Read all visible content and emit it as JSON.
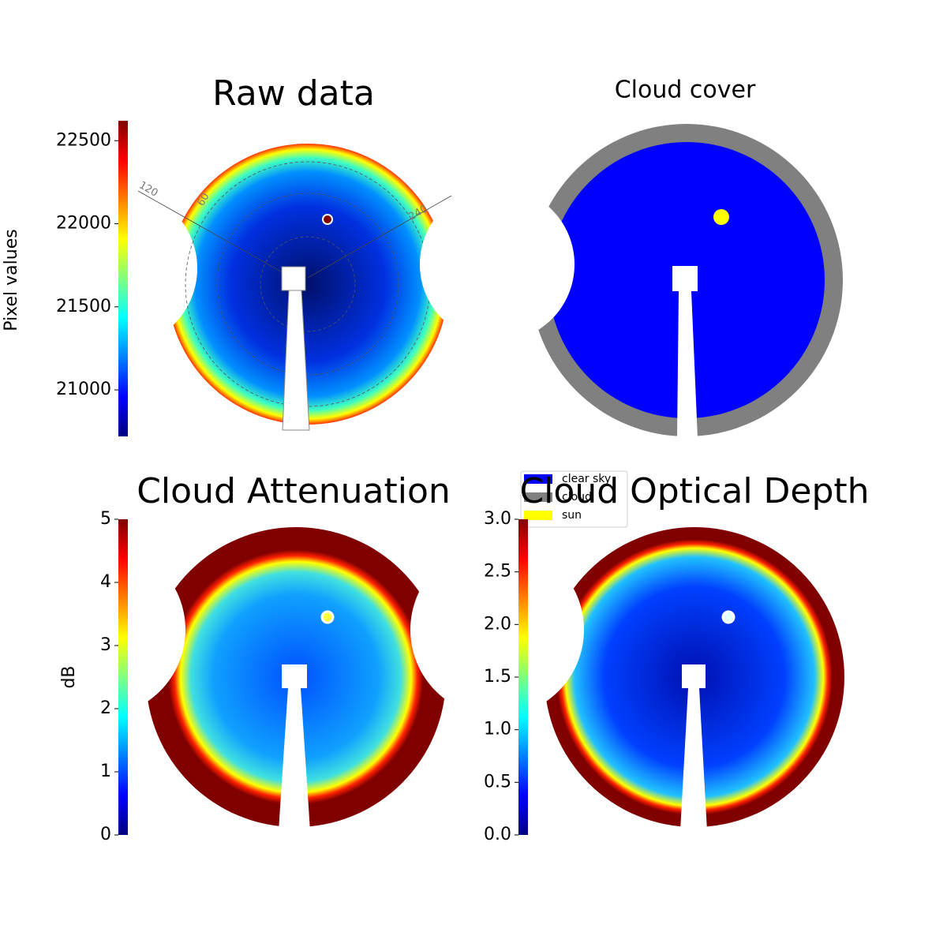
{
  "chart_data": [
    {
      "type": "image",
      "title": "Raw data",
      "colorbar": {
        "label": "Pixel values",
        "colormap": "jet",
        "lim": [
          20720,
          22620
        ],
        "ticks": [
          21000,
          21500,
          22000,
          22500
        ]
      },
      "polar_labels": [
        "120",
        "60",
        "240"
      ]
    },
    {
      "type": "image",
      "title": "Cloud cover",
      "legend": [
        {
          "name": "clear sky",
          "color": "#0000ff"
        },
        {
          "name": "cloud",
          "color": "#808080"
        },
        {
          "name": "sun",
          "color": "#ffff00"
        }
      ]
    },
    {
      "type": "image",
      "title": "Cloud Attenuation",
      "colorbar": {
        "label": "dB",
        "colormap": "jet",
        "lim": [
          0,
          5
        ],
        "ticks": [
          0,
          1,
          2,
          3,
          4,
          5
        ]
      }
    },
    {
      "type": "image",
      "title": "Cloud Optical Depth",
      "colorbar": {
        "colormap": "jet",
        "lim": [
          0,
          3
        ],
        "ticks": [
          {
            "value": 0,
            "label": "0.0"
          },
          {
            "value": 0.5,
            "label": "0.5"
          },
          {
            "value": 1,
            "label": "1.0"
          },
          {
            "value": 1.5,
            "label": "1.5"
          },
          {
            "value": 2,
            "label": "2.0"
          },
          {
            "value": 2.5,
            "label": "2.5"
          },
          {
            "value": 3,
            "label": "3.0"
          }
        ]
      }
    }
  ]
}
